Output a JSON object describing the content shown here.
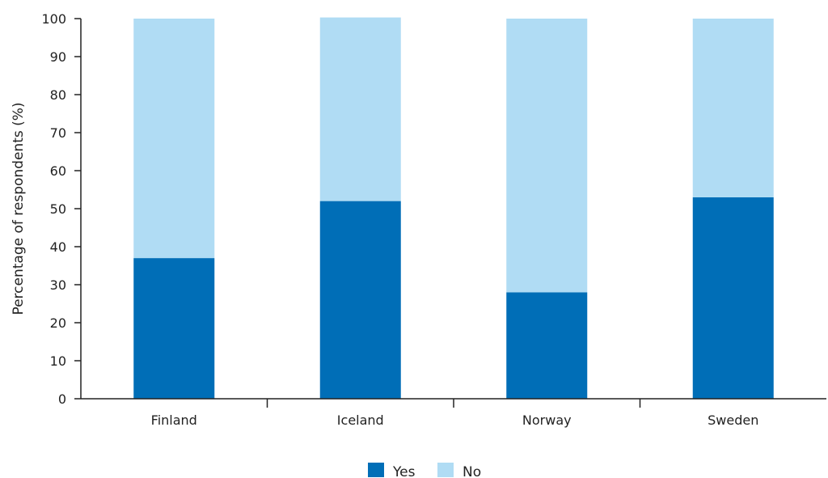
{
  "chart_data": {
    "type": "bar",
    "stacked": true,
    "categories": [
      "Finland",
      "Iceland",
      "Norway",
      "Sweden"
    ],
    "series": [
      {
        "name": "Yes",
        "values": [
          37,
          52,
          28,
          53
        ],
        "color": "#006eb7"
      },
      {
        "name": "No",
        "values": [
          63,
          48.3,
          72,
          47
        ],
        "color": "#b0dcf4"
      }
    ],
    "xlabel": "",
    "ylabel": "Percentage of respondents (%)",
    "ylim": [
      0,
      100
    ],
    "yticks": [
      0,
      10,
      20,
      30,
      40,
      50,
      60,
      70,
      80,
      90,
      100
    ],
    "grid": false,
    "legend_position": "bottom-center"
  }
}
